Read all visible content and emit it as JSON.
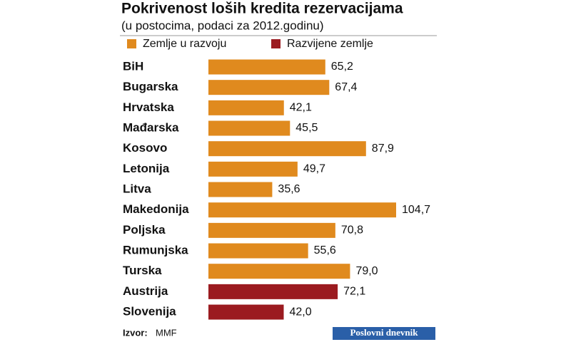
{
  "chart_data": {
    "type": "bar",
    "orientation": "horizontal",
    "title": "Pokrivenost loših kredita rezervacijama",
    "subtitle": "(u postocima, podaci za 2012.godinu)",
    "categories": [
      "BiH",
      "Bugarska",
      "Hrvatska",
      "Mađarska",
      "Kosovo",
      "Letonija",
      "Litva",
      "Makedonija",
      "Poljska",
      "Rumunjska",
      "Turska",
      "Austrija",
      "Slovenija"
    ],
    "series": [
      {
        "name": "Zemlje u razvoju",
        "color": "#e08a1e",
        "values": [
          65.2,
          67.4,
          42.1,
          45.5,
          87.9,
          49.7,
          35.6,
          104.7,
          70.8,
          55.6,
          79.0,
          null,
          null
        ],
        "value_labels": [
          "65,2",
          "67,4",
          "42,1",
          "45,5",
          "87,9",
          "49,7",
          "35,6",
          "104,7",
          "70,8",
          "55,6",
          "79,0",
          null,
          null
        ]
      },
      {
        "name": "Razvijene zemlje",
        "color": "#9b1b20",
        "values": [
          null,
          null,
          null,
          null,
          null,
          null,
          null,
          null,
          null,
          null,
          null,
          72.1,
          42.0
        ],
        "value_labels": [
          null,
          null,
          null,
          null,
          null,
          null,
          null,
          null,
          null,
          null,
          null,
          "72,1",
          "42,0"
        ]
      }
    ],
    "source_label": "Izvor:",
    "source": "MMF",
    "publisher": "Poslovni dnevnik"
  }
}
